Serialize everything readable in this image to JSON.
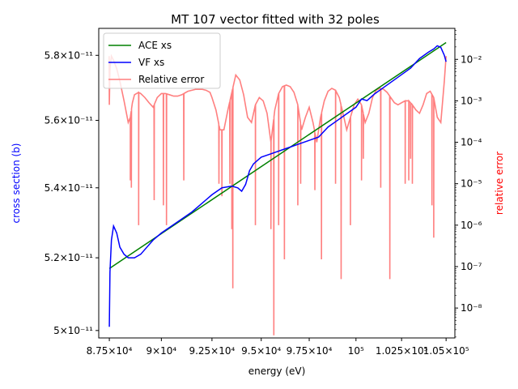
{
  "chart_data": {
    "type": "line",
    "title": "MT 107 vector fitted with 32 poles",
    "xlabel": "energy (eV)",
    "ylabel": "cross section (b)",
    "y2label": "relative error",
    "xscale": "log",
    "yscale": "log",
    "y2scale": "log",
    "xlim": [
      87000,
      105500
    ],
    "ylim": [
      4.98e-11,
      5.885e-11
    ],
    "y2lim": [
      1.9e-09,
      0.056
    ],
    "xticks": [
      {
        "value": 87500,
        "label": "8.75×10⁴"
      },
      {
        "value": 90000,
        "label": "9×10⁴"
      },
      {
        "value": 92500,
        "label": "9.25×10⁴"
      },
      {
        "value": 95000,
        "label": "9.5×10⁴"
      },
      {
        "value": 97500,
        "label": "9.75×10⁴"
      },
      {
        "value": 100000,
        "label": "10⁵"
      },
      {
        "value": 102500,
        "label": "1.025×10⁵"
      },
      {
        "value": 105000,
        "label": "1.05×10⁵"
      }
    ],
    "yticks": [
      {
        "value": 5e-11,
        "label": "5×10⁻¹¹"
      },
      {
        "value": 5.2e-11,
        "label": "5.2×10⁻¹¹"
      },
      {
        "value": 5.4e-11,
        "label": "5.4×10⁻¹¹"
      },
      {
        "value": 5.6e-11,
        "label": "5.6×10⁻¹¹"
      },
      {
        "value": 5.8e-11,
        "label": "5.8×10⁻¹¹"
      }
    ],
    "y2ticks": [
      {
        "value": 1e-08,
        "label": "10⁻⁸"
      },
      {
        "value": 1e-07,
        "label": "10⁻⁷"
      },
      {
        "value": 1e-06,
        "label": "10⁻⁶"
      },
      {
        "value": 1e-05,
        "label": "10⁻⁵"
      },
      {
        "value": 0.0001,
        "label": "10⁻⁴"
      },
      {
        "value": 0.001,
        "label": "10⁻³"
      },
      {
        "value": 0.01,
        "label": "10⁻²"
      }
    ],
    "legend": {
      "placement": "upper-left"
    },
    "series": [
      {
        "name": "ACE xs",
        "axis": "left",
        "color": "#008000",
        "x": [
          87500,
          105000
        ],
        "y": [
          5.17e-11,
          5.84e-11
        ]
      },
      {
        "name": "VF xs",
        "axis": "left",
        "color": "#0000ff",
        "x": [
          87500,
          87530,
          87600,
          87700,
          87850,
          88000,
          88200,
          88400,
          88700,
          89000,
          89300,
          89600,
          90000,
          90500,
          91000,
          91500,
          92000,
          92500,
          93000,
          93500,
          93800,
          94000,
          94200,
          94400,
          94600,
          94800,
          95000,
          95500,
          96000,
          96500,
          97000,
          97500,
          98000,
          98500,
          99000,
          99500,
          100000,
          100300,
          100600,
          101000,
          101500,
          102000,
          102500,
          103000,
          103500,
          104000,
          104300,
          104500,
          104700,
          104900,
          105000
        ],
        "y": [
          5.01e-11,
          5.16e-11,
          5.25e-11,
          5.29e-11,
          5.27e-11,
          5.23e-11,
          5.21e-11,
          5.2e-11,
          5.2e-11,
          5.21e-11,
          5.23e-11,
          5.25e-11,
          5.27e-11,
          5.29e-11,
          5.31e-11,
          5.33e-11,
          5.355e-11,
          5.38e-11,
          5.4e-11,
          5.405e-11,
          5.4e-11,
          5.39e-11,
          5.41e-11,
          5.45e-11,
          5.47e-11,
          5.48e-11,
          5.49e-11,
          5.5e-11,
          5.51e-11,
          5.52e-11,
          5.53e-11,
          5.54e-11,
          5.55e-11,
          5.58e-11,
          5.6e-11,
          5.62e-11,
          5.64e-11,
          5.665e-11,
          5.66e-11,
          5.68e-11,
          5.7e-11,
          5.72e-11,
          5.74e-11,
          5.76e-11,
          5.79e-11,
          5.81e-11,
          5.82e-11,
          5.83e-11,
          5.825e-11,
          5.8e-11,
          5.78e-11
        ]
      },
      {
        "name": "Relative error",
        "axis": "right",
        "color": "#ff7f7f",
        "x": [
          87500,
          87530,
          87600,
          87700,
          87850,
          88000,
          88200,
          88400,
          88500,
          88600,
          88700,
          88900,
          89000,
          89200,
          89400,
          89600,
          89800,
          90000,
          90200,
          90400,
          90600,
          90800,
          91000,
          91300,
          91500,
          91700,
          92000,
          92200,
          92400,
          92500,
          92700,
          92900,
          93100,
          93300,
          93500,
          93700,
          93900,
          94100,
          94300,
          94500,
          94700,
          94900,
          95100,
          95300,
          95500,
          95700,
          95900,
          96100,
          96300,
          96500,
          96700,
          96900,
          97100,
          97300,
          97500,
          97700,
          97900,
          98100,
          98300,
          98500,
          98700,
          98900,
          99100,
          99300,
          99500,
          99700,
          99900,
          100100,
          100300,
          100500,
          100700,
          100900,
          101100,
          101300,
          101500,
          101700,
          101900,
          102100,
          102300,
          102500,
          102700,
          102900,
          103100,
          103300,
          103500,
          103700,
          103900,
          104100,
          104300,
          104500,
          104700,
          104900,
          105000
        ],
        "y": [
          0.0008,
          0.006,
          0.012,
          0.0095,
          0.006,
          0.003,
          0.001,
          0.0003,
          0.0004,
          0.0009,
          0.0014,
          0.0016,
          0.0015,
          0.0012,
          0.0009,
          0.0007,
          0.0012,
          0.0015,
          0.0015,
          0.0014,
          0.0013,
          0.0013,
          0.0014,
          0.0017,
          0.0018,
          0.0019,
          0.0019,
          0.0018,
          0.0016,
          0.0012,
          0.0006,
          0.0002,
          0.0002,
          0.0006,
          0.0016,
          0.0042,
          0.0032,
          0.0014,
          0.0004,
          0.0003,
          0.0008,
          0.0012,
          0.001,
          0.0005,
          0.0001,
          0.0006,
          0.0015,
          0.0022,
          0.0024,
          0.0022,
          0.0016,
          0.0008,
          0.0002,
          0.0004,
          0.0007,
          0.0003,
          0.0001,
          0.0004,
          0.001,
          0.0017,
          0.002,
          0.0018,
          0.0012,
          0.0005,
          0.0002,
          0.0004,
          0.0008,
          0.0011,
          0.0008,
          0.0003,
          0.0005,
          0.0012,
          0.0018,
          0.002,
          0.0019,
          0.0016,
          0.0012,
          0.0009,
          0.0008,
          0.0009,
          0.001,
          0.001,
          0.0008,
          0.0006,
          0.0005,
          0.0008,
          0.0015,
          0.0017,
          0.0012,
          0.0004,
          0.0003,
          0.003,
          0.012
        ]
      }
    ],
    "error_dips": [
      {
        "x": 87500,
        "y": 0.0008
      },
      {
        "x": 88500,
        "y": 1.2e-05
      },
      {
        "x": 88550,
        "y": 8e-06
      },
      {
        "x": 88900,
        "y": 1e-06
      },
      {
        "x": 89650,
        "y": 4e-06
      },
      {
        "x": 90100,
        "y": 3e-06
      },
      {
        "x": 90250,
        "y": 1e-06
      },
      {
        "x": 91100,
        "y": 1.2e-05
      },
      {
        "x": 92850,
        "y": 1e-05
      },
      {
        "x": 93000,
        "y": 5e-06
      },
      {
        "x": 93400,
        "y": 1e-05
      },
      {
        "x": 93500,
        "y": 8e-07
      },
      {
        "x": 93550,
        "y": 3e-08
      },
      {
        "x": 94700,
        "y": 1e-06
      },
      {
        "x": 95500,
        "y": 8e-07
      },
      {
        "x": 95650,
        "y": 2.2e-09
      },
      {
        "x": 95900,
        "y": 1e-06
      },
      {
        "x": 96200,
        "y": 1.5e-07
      },
      {
        "x": 96900,
        "y": 3e-06
      },
      {
        "x": 97050,
        "y": 1e-05
      },
      {
        "x": 97800,
        "y": 7e-06
      },
      {
        "x": 98150,
        "y": 1.5e-07
      },
      {
        "x": 98900,
        "y": 1e-05
      },
      {
        "x": 99200,
        "y": 5e-08
      },
      {
        "x": 99700,
        "y": 1e-06
      },
      {
        "x": 100300,
        "y": 1.2e-05
      },
      {
        "x": 100400,
        "y": 4e-05
      },
      {
        "x": 101350,
        "y": 8e-06
      },
      {
        "x": 101850,
        "y": 5e-08
      },
      {
        "x": 102700,
        "y": 1e-05
      },
      {
        "x": 102900,
        "y": 1.2e-05
      },
      {
        "x": 103000,
        "y": 4e-05
      },
      {
        "x": 103100,
        "y": 1e-05
      },
      {
        "x": 104200,
        "y": 3e-06
      },
      {
        "x": 104300,
        "y": 5e-07
      }
    ]
  }
}
